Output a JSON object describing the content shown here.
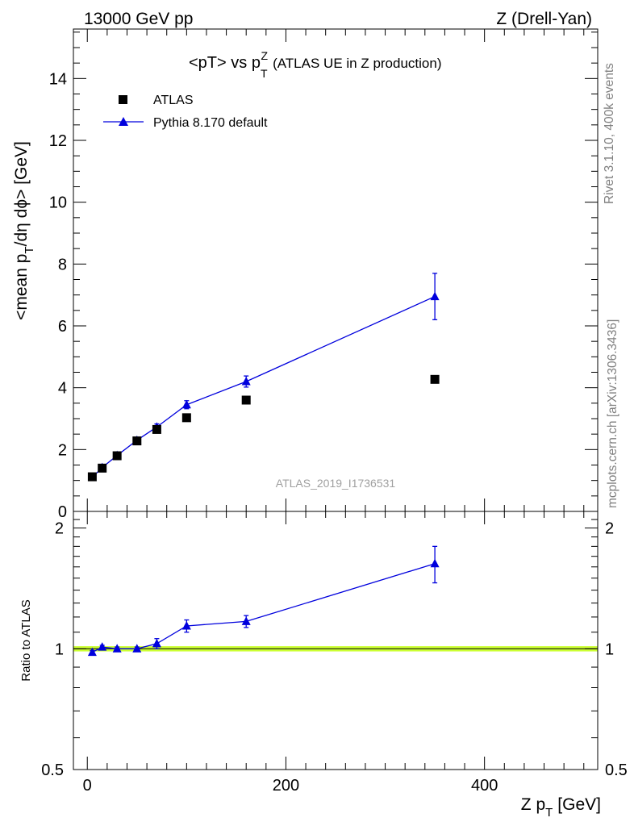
{
  "header": {
    "left": "13000 GeV pp",
    "right": "Z (Drell-Yan)"
  },
  "side_text": {
    "rivet": "Rivet 3.1.10,  400k events",
    "mcplots": "mcplots.cern.ch [arXiv:1306.3436]"
  },
  "chart_data": [
    {
      "type": "scatter",
      "title": "<pT> vs p",
      "title_sup": "Z",
      "title_sub": "T",
      "title_tail": "(ATLAS UE in Z production)",
      "ylabel": "<mean p",
      "ylabel_sub": "T",
      "ylabel_tail": "/dη dϕ> [GeV]",
      "watermark": "ATLAS_2019_I1736531",
      "xlim": [
        -14,
        514
      ],
      "ylim": [
        0,
        15.6
      ],
      "yticks": [
        0,
        2,
        4,
        6,
        8,
        10,
        12,
        14
      ],
      "ytick_labels": [
        "0",
        "2",
        "4",
        "6",
        "8",
        "10",
        "12",
        "14"
      ],
      "legend_position": "top-left",
      "series": [
        {
          "name": "ATLAS",
          "marker": "square",
          "color": "#000000",
          "x": [
            5,
            15,
            30,
            50,
            70,
            100,
            160,
            350
          ],
          "y": [
            1.12,
            1.4,
            1.8,
            2.28,
            2.65,
            3.03,
            3.6,
            4.27
          ]
        },
        {
          "name": "Pythia 8.170 default",
          "marker": "triangle",
          "color": "#0000dd",
          "x": [
            5,
            15,
            30,
            50,
            70,
            100,
            160,
            350
          ],
          "y": [
            1.1,
            1.42,
            1.81,
            2.3,
            2.73,
            3.45,
            4.2,
            6.95
          ],
          "yerr": [
            0.03,
            0.03,
            0.04,
            0.05,
            0.1,
            0.13,
            0.18,
            0.75
          ]
        }
      ]
    },
    {
      "type": "scatter",
      "ylabel": "Ratio to ATLAS",
      "xlabel": "Z p",
      "xlabel_sub": "T",
      "xlabel_tail": "[GeV]",
      "xlim": [
        -14,
        514
      ],
      "ylim": [
        0.5,
        2.2
      ],
      "yscale": "log",
      "xticks": [
        0,
        200,
        400
      ],
      "xtick_labels": [
        "0",
        "200",
        "400"
      ],
      "yticks": [
        0.5,
        1,
        2
      ],
      "ytick_labels": [
        "0.5",
        "1",
        "2"
      ],
      "reference_band": {
        "value": 1.0,
        "low": 0.985,
        "high": 1.015,
        "color": "#ccff33"
      },
      "series": [
        {
          "name": "Pythia 8.170 default",
          "marker": "triangle",
          "color": "#0000dd",
          "x": [
            5,
            15,
            30,
            50,
            70,
            100,
            160,
            350
          ],
          "y": [
            0.98,
            1.01,
            1.0,
            1.0,
            1.03,
            1.14,
            1.17,
            1.63
          ],
          "yerr": [
            0.01,
            0.01,
            0.01,
            0.01,
            0.03,
            0.04,
            0.04,
            0.17
          ]
        }
      ]
    }
  ]
}
